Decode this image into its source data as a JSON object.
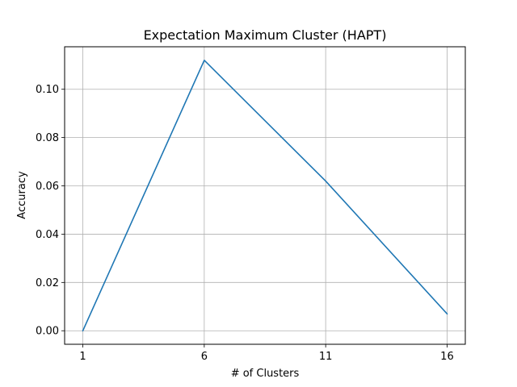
{
  "chart_data": {
    "type": "line",
    "title": "Expectation Maximum Cluster (HAPT)",
    "xlabel": "# of Clusters",
    "ylabel": "Accuracy",
    "x": [
      1,
      6,
      11,
      16
    ],
    "series": [
      {
        "values": [
          0.0,
          0.112,
          0.062,
          0.007
        ],
        "color": "#1f77b4"
      }
    ],
    "xticks": [
      1,
      6,
      11,
      16
    ],
    "yticks": [
      0.0,
      0.02,
      0.04,
      0.06,
      0.08,
      0.1
    ],
    "ytick_labels": [
      "0.00",
      "0.02",
      "0.04",
      "0.06",
      "0.08",
      "0.10"
    ],
    "xlim": [
      0.25,
      16.75
    ],
    "ylim": [
      -0.0056,
      0.1176
    ],
    "grid": true,
    "colors": {
      "grid": "#b0b0b0",
      "axes": "#000000",
      "line": "#1f77b4"
    }
  }
}
